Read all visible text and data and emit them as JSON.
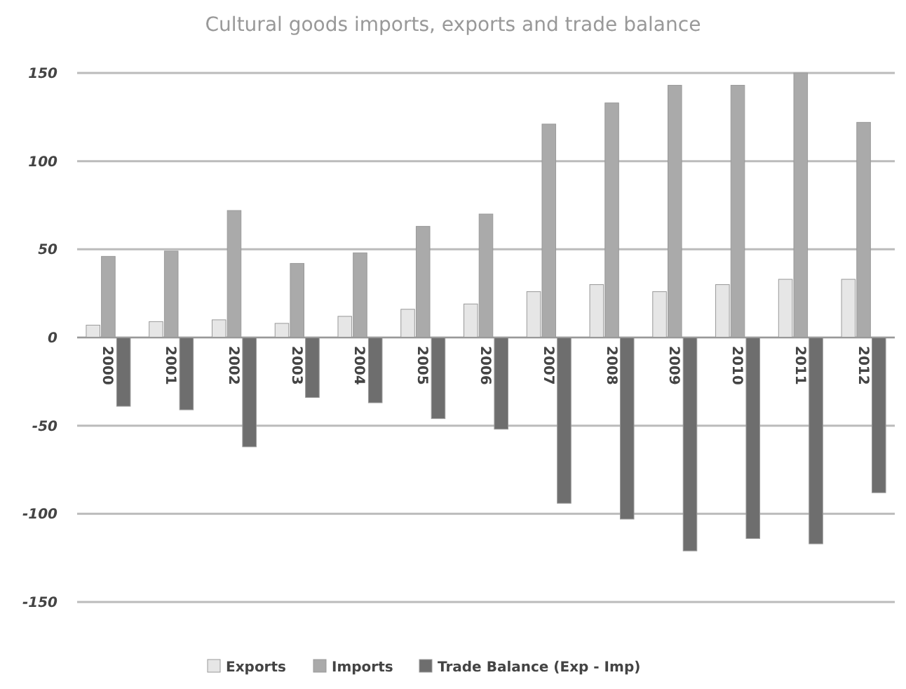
{
  "chart_data": {
    "type": "bar",
    "title": "Cultural goods imports, exports and trade balance",
    "categories": [
      "2000",
      "2001",
      "2002",
      "2003",
      "2004",
      "2005",
      "2006",
      "2007",
      "2008",
      "2009",
      "2010",
      "2011",
      "2012"
    ],
    "series": [
      {
        "name": "Exports",
        "color": "#e6e6e6",
        "values": [
          7,
          9,
          10,
          8,
          12,
          16,
          19,
          26,
          30,
          26,
          30,
          33,
          33
        ]
      },
      {
        "name": "Imports",
        "color": "#aaaaaa",
        "values": [
          46,
          49,
          72,
          42,
          48,
          63,
          70,
          121,
          133,
          143,
          143,
          150,
          122
        ]
      },
      {
        "name": "Trade Balance  (Exp - Imp)",
        "color": "#6e6e6e",
        "values": [
          -39,
          -41,
          -62,
          -34,
          -37,
          -46,
          -52,
          -94,
          -103,
          -121,
          -114,
          -117,
          -88
        ]
      }
    ],
    "ylim": [
      -150,
      150
    ],
    "yticks": [
      -150,
      -100,
      -50,
      0,
      50,
      100,
      150
    ],
    "grid": "y",
    "legend": "bottom"
  }
}
